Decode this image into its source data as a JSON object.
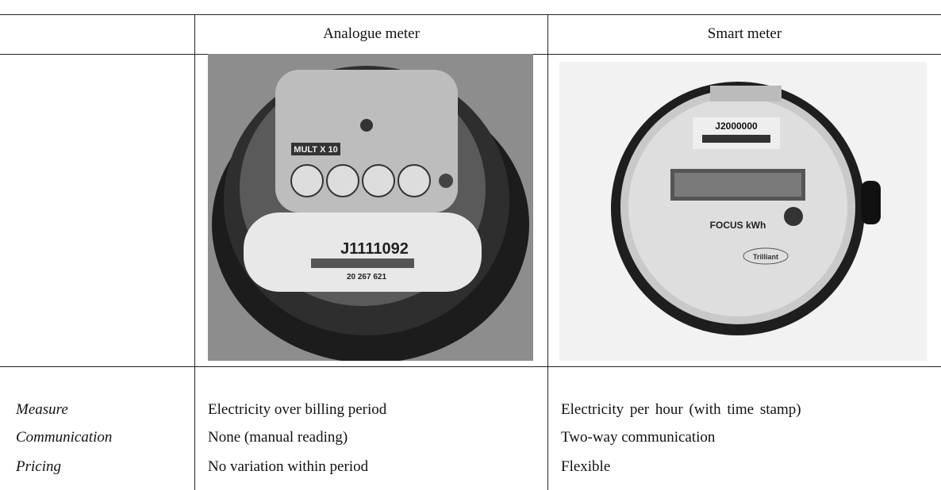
{
  "header": {
    "columns": [
      "Analogue meter",
      "Smart meter"
    ]
  },
  "images": [
    {
      "labels": [
        "MULT X 10",
        "J1111092",
        "20 267 621"
      ]
    },
    {
      "labels": [
        "J2000000",
        "FOCUS kWh",
        "Trilliant"
      ]
    }
  ],
  "table": {
    "rows": [
      [
        "Measure",
        "Electricity over billing period",
        "Electricity per hour (with time stamp)"
      ],
      [
        "Communication",
        "None (manual reading)",
        "Two-way communication"
      ],
      [
        "Pricing",
        "No variation within period",
        "Flexible"
      ]
    ]
  }
}
